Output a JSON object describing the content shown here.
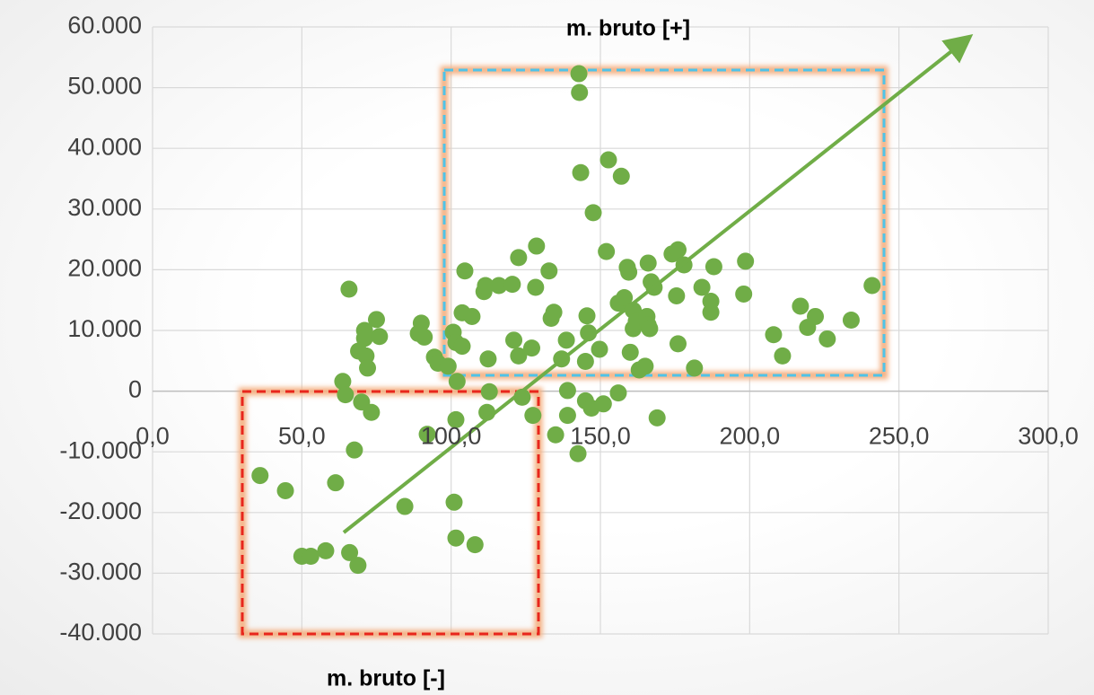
{
  "chart_data": {
    "type": "scatter",
    "annotations": [
      "m. bruto [+]",
      "m. bruto [-]"
    ],
    "color": "#70ad47",
    "grid": true,
    "xlim": [
      0,
      300
    ],
    "xticks": [
      {
        "value": 0,
        "label": "0,0"
      },
      {
        "value": 50,
        "label": "50,0"
      },
      {
        "value": 100,
        "label": "100,0"
      },
      {
        "value": 150,
        "label": "150,0"
      },
      {
        "value": 200,
        "label": "200,0"
      },
      {
        "value": 250,
        "label": "250,0"
      },
      {
        "value": 300,
        "label": "300,0"
      }
    ],
    "ylim": [
      -40000,
      60000
    ],
    "yticks": [
      {
        "value": 60000,
        "label": "60.000"
      },
      {
        "value": 50000,
        "label": "50.000"
      },
      {
        "value": 40000,
        "label": "40.000"
      },
      {
        "value": 30000,
        "label": "30.000"
      },
      {
        "value": 20000,
        "label": "20.000"
      },
      {
        "value": 10000,
        "label": "10.000"
      },
      0,
      {
        "value": -10000,
        "label": "-10.000"
      },
      {
        "value": -20000,
        "label": "-20.000"
      },
      {
        "value": -30000,
        "label": "-30.000"
      },
      {
        "value": -40000,
        "label": "-40.000"
      }
    ],
    "x": [
      36,
      44.5,
      50,
      53,
      58,
      61.3,
      65.8,
      63.7,
      64.6,
      66,
      68.8,
      67.6,
      70,
      73.3,
      71,
      71,
      69,
      71.5,
      72,
      75,
      76,
      84.5,
      90,
      91,
      89,
      92,
      94.4,
      95.6,
      99,
      100.7,
      101.6,
      102,
      101.6,
      101,
      101.6,
      108,
      103.7,
      104.6,
      103.7,
      107,
      111,
      111.5,
      116,
      120.5,
      112.4,
      112.8,
      112,
      121,
      122.6,
      122.6,
      123.8,
      127,
      128.3,
      128.6,
      127.4,
      132.8,
      133.5,
      134.4,
      135,
      137,
      138.6,
      139,
      139,
      142.5,
      142.8,
      143,
      143.4,
      145,
      145.5,
      145,
      146,
      147,
      147.6,
      149.7,
      151,
      152,
      152.7,
      157,
      156,
      156,
      158,
      159,
      159.5,
      160,
      161,
      161,
      162,
      163,
      165,
      166,
      165.6,
      166,
      166.5,
      167,
      168,
      169,
      174,
      176,
      175.5,
      176,
      178,
      181.5,
      184,
      187,
      187,
      188,
      198,
      198.6,
      208,
      211,
      217,
      219.4,
      222,
      226,
      234,
      241
    ],
    "values": [
      -13900,
      -16400,
      -27200,
      -27200,
      -26300,
      -15100,
      16800,
      1600,
      -600,
      -26600,
      -28700,
      -9700,
      -1800,
      -3500,
      10000,
      8700,
      6600,
      5800,
      3800,
      11800,
      9000,
      -19000,
      11200,
      8900,
      9500,
      -7100,
      5600,
      4600,
      4100,
      9700,
      8000,
      1600,
      -4700,
      -18300,
      -24200,
      -25300,
      7400,
      19800,
      12900,
      12300,
      16400,
      17400,
      17400,
      17600,
      5300,
      -100,
      -3500,
      8400,
      22000,
      5800,
      -1000,
      7100,
      17100,
      23900,
      -4000,
      19800,
      12000,
      13000,
      -7200,
      5300,
      8400,
      -4000,
      100,
      -10300,
      52300,
      49200,
      36000,
      4900,
      12400,
      -1600,
      9600,
      -2800,
      29400,
      6900,
      -2100,
      23000,
      38100,
      35400,
      -300,
      14500,
      15400,
      20400,
      19600,
      6400,
      13300,
      10300,
      11500,
      3500,
      4100,
      21100,
      12300,
      10900,
      10300,
      18000,
      17100,
      -4400,
      22600,
      23300,
      15700,
      7800,
      20800,
      3800,
      17100,
      14800,
      13000,
      20500,
      16000,
      21400,
      9300,
      5800,
      14000,
      10500,
      12300,
      8600,
      11700,
      17400
    ]
  }
}
